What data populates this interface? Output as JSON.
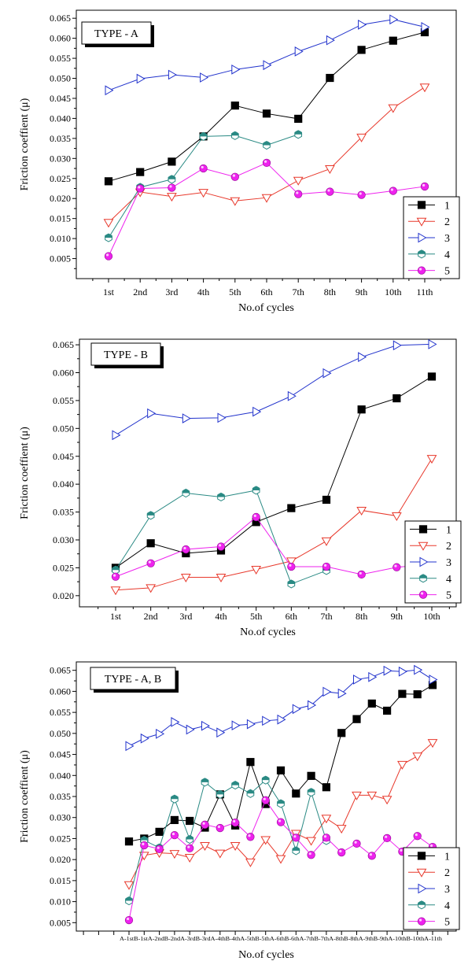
{
  "marker_shapes": [
    "square",
    "triangle-down",
    "triangle-right",
    "hexagon",
    "circle"
  ],
  "chart_data": [
    {
      "type": "line",
      "title": "TYPE - A",
      "xlabel": "No.of cycles",
      "ylabel": "Friction coeffient (μ)",
      "ylim": [
        0.0,
        0.067
      ],
      "yticks": [
        "0.005",
        "0.010",
        "0.015",
        "0.020",
        "0.025",
        "0.030",
        "0.035",
        "0.040",
        "0.045",
        "0.050",
        "0.055",
        "0.060",
        "0.065"
      ],
      "categories": [
        "1st",
        "2nd",
        "3rd",
        "4th",
        "5th",
        "6th",
        "7th",
        "8th",
        "9th",
        "10th",
        "11th"
      ],
      "legend_position": "bottom-right",
      "grid": false,
      "series": [
        {
          "name": "1",
          "color": "#000000",
          "values": [
            0.0243,
            0.0266,
            0.0292,
            0.0355,
            0.0432,
            0.0412,
            0.0399,
            0.0501,
            0.0571,
            0.0594,
            0.0615
          ]
        },
        {
          "name": "2",
          "color": "#e8392c",
          "values": [
            0.014,
            0.0216,
            0.0205,
            0.0215,
            0.0194,
            0.0202,
            0.0245,
            0.0274,
            0.0353,
            0.0426,
            0.0478
          ]
        },
        {
          "name": "3",
          "color": "#2233cc",
          "values": [
            0.047,
            0.0499,
            0.0509,
            0.0502,
            0.0522,
            0.0533,
            0.0567,
            0.0595,
            0.0634,
            0.0647,
            0.0628
          ]
        },
        {
          "name": "4",
          "color": "#2a8a84",
          "values": [
            0.0102,
            0.0228,
            0.0248,
            0.0355,
            0.0357,
            0.0333,
            0.036,
            null,
            null,
            null,
            null
          ]
        },
        {
          "name": "5",
          "color": "#ee22ee",
          "values": [
            0.0056,
            0.0225,
            0.0227,
            0.0275,
            0.0254,
            0.0289,
            0.0211,
            0.0217,
            0.0209,
            0.0219,
            0.023
          ]
        }
      ]
    },
    {
      "type": "line",
      "title": "TYPE - B",
      "xlabel": "No.of cycles",
      "ylabel": "Friction coeffient (μ)",
      "ylim": [
        0.018,
        0.066
      ],
      "yticks": [
        "0.020",
        "0.025",
        "0.030",
        "0.035",
        "0.040",
        "0.045",
        "0.050",
        "0.055",
        "0.060",
        "0.065"
      ],
      "categories": [
        "1st",
        "2nd",
        "3rd",
        "4th",
        "5th",
        "6th",
        "7th",
        "8th",
        "9th",
        "10th"
      ],
      "legend_position": "bottom-right",
      "grid": false,
      "series": [
        {
          "name": "1",
          "color": "#000000",
          "values": [
            0.025,
            0.0294,
            0.0276,
            0.0281,
            0.0332,
            0.0357,
            0.0372,
            0.0534,
            0.0554,
            0.0593
          ]
        },
        {
          "name": "2",
          "color": "#e8392c",
          "values": [
            0.021,
            0.0214,
            0.0233,
            0.0233,
            0.0247,
            0.0262,
            0.0298,
            0.0353,
            0.0343,
            0.0446
          ]
        },
        {
          "name": "3",
          "color": "#2233cc",
          "values": [
            0.0488,
            0.0527,
            0.0518,
            0.0519,
            0.053,
            0.0558,
            0.0599,
            0.0628,
            0.0649,
            0.0651
          ]
        },
        {
          "name": "4",
          "color": "#2a8a84",
          "values": [
            0.0246,
            0.0344,
            0.0384,
            0.0377,
            0.0389,
            0.0221,
            0.0245,
            null,
            null,
            null
          ]
        },
        {
          "name": "5",
          "color": "#ee22ee",
          "values": [
            0.0234,
            0.0258,
            0.0283,
            0.0288,
            0.0341,
            0.0252,
            0.0252,
            0.0238,
            0.0251,
            0.0256
          ]
        }
      ]
    },
    {
      "type": "line",
      "title": "TYPE - A, B",
      "xlabel": "No.of cycles",
      "ylabel": "Friction coeffient (μ)",
      "ylim": [
        0.003,
        0.067
      ],
      "yticks": [
        "0.005",
        "0.010",
        "0.015",
        "0.020",
        "0.025",
        "0.030",
        "0.035",
        "0.040",
        "0.045",
        "0.050",
        "0.055",
        "0.060",
        "0.065"
      ],
      "categories": [
        "A-1st",
        "B-1st",
        "A-2nd",
        "B-2nd",
        "A-3rd",
        "B-3rd",
        "A-4th",
        "B-4th",
        "A-5th",
        "B-5th",
        "A-6th",
        "B-6th",
        "A-7th",
        "B-7th",
        "A-8th",
        "B-8th",
        "A-9th",
        "B-9th",
        "A-10th",
        "B-10th",
        "A-11th"
      ],
      "category_tick_text": "A-1stB-1stA-2ndB-2ndA-3rdB-3rdA-4thB-4thA-5thB-5thA-6thB-6thA-7thB-7thA-8thB-8thA-9thB-9thA-10thB-10thA-11th",
      "legend_position": "bottom-right",
      "grid": false,
      "series": [
        {
          "name": "1",
          "color": "#000000",
          "values": [
            0.0243,
            0.025,
            0.0266,
            0.0294,
            0.0292,
            0.0276,
            0.0355,
            0.0281,
            0.0432,
            0.0332,
            0.0412,
            0.0357,
            0.0399,
            0.0372,
            0.0501,
            0.0534,
            0.0571,
            0.0554,
            0.0594,
            0.0593,
            0.0615
          ]
        },
        {
          "name": "2",
          "color": "#e8392c",
          "values": [
            0.014,
            0.021,
            0.0216,
            0.0214,
            0.0205,
            0.0233,
            0.0215,
            0.0233,
            0.0194,
            0.0247,
            0.0202,
            0.0262,
            0.0245,
            0.0298,
            0.0274,
            0.0353,
            0.0353,
            0.0343,
            0.0426,
            0.0446,
            0.0478
          ]
        },
        {
          "name": "3",
          "color": "#2233cc",
          "values": [
            0.047,
            0.0488,
            0.0499,
            0.0527,
            0.0509,
            0.0518,
            0.0502,
            0.0519,
            0.0522,
            0.053,
            0.0533,
            0.0558,
            0.0567,
            0.0599,
            0.0595,
            0.0628,
            0.0634,
            0.0649,
            0.0647,
            0.0651,
            0.0628
          ]
        },
        {
          "name": "4",
          "color": "#2a8a84",
          "values": [
            0.0102,
            0.0246,
            0.0228,
            0.0344,
            0.0248,
            0.0384,
            0.0355,
            0.0377,
            0.0357,
            0.0389,
            0.0333,
            0.0221,
            0.036,
            0.0245,
            null,
            null,
            null,
            null,
            null,
            null,
            null
          ]
        },
        {
          "name": "5",
          "color": "#ee22ee",
          "values": [
            0.0056,
            0.0234,
            0.0225,
            0.0258,
            0.0227,
            0.0283,
            0.0275,
            0.0288,
            0.0254,
            0.0341,
            0.0289,
            0.0252,
            0.0211,
            0.0252,
            0.0217,
            0.0238,
            0.0209,
            0.0251,
            0.0219,
            0.0256,
            0.023
          ]
        }
      ]
    }
  ]
}
